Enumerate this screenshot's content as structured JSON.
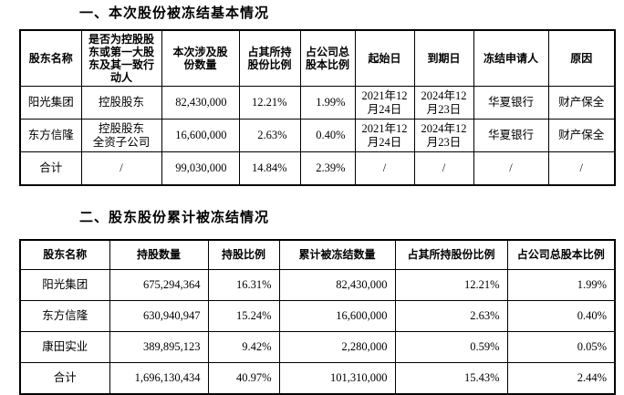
{
  "document": {
    "background_color": "#ffffff",
    "text_color": "#000000",
    "border_color": "#000000"
  },
  "section1": {
    "title": "一、本次股份被冻结基本情况",
    "table": {
      "headers": [
        "股东名称",
        "是否为控股股\n东或第一大股\n东及其一致行\n动人",
        "本次涉及股\n份数量",
        "占其所持\n股份比例",
        "占公司总\n股本比例",
        "起始日",
        "到期日",
        "冻结申请人",
        "原因"
      ],
      "rows": [
        [
          "阳光集团",
          "控股股东",
          "82,430,000",
          "12.21%",
          "1.99%",
          "2021年12\n月24日",
          "2024年12\n月23日",
          "华夏银行",
          "财产保全"
        ],
        [
          "东方信隆",
          "控股股东\n全资子公司",
          "16,600,000",
          "2.63%",
          "0.40%",
          "2021年12\n月24日",
          "2024年12\n月23日",
          "华夏银行",
          "财产保全"
        ],
        [
          "合计",
          "/",
          "99,030,000",
          "14.84%",
          "2.39%",
          "/",
          "/",
          "/",
          "/"
        ]
      ]
    }
  },
  "section2": {
    "title": "二、股东股份累计被冻结情况",
    "table": {
      "headers": [
        "股东名称",
        "持股数量",
        "持股比例",
        "累计被冻结数量",
        "占其所持股份比例",
        "占公司总股本比例"
      ],
      "rows": [
        [
          "阳光集团",
          "675,294,364",
          "16.31%",
          "82,430,000",
          "12.21%",
          "1.99%"
        ],
        [
          "东方信隆",
          "630,940,947",
          "15.24%",
          "16,600,000",
          "2.63%",
          "0.40%"
        ],
        [
          "康田实业",
          "389,895,123",
          "9.42%",
          "2,280,000",
          "0.59%",
          "0.05%"
        ],
        [
          "合计",
          "1,696,130,434",
          "40.97%",
          "101,310,000",
          "15.43%",
          "2.44%"
        ]
      ]
    }
  }
}
